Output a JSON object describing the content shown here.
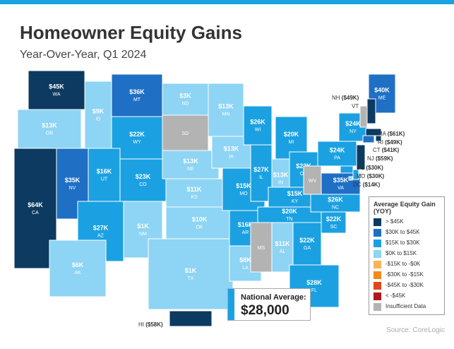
{
  "header": {
    "title": "Homeowner Equity Gains",
    "subtitle": "Year-Over-Year, Q1 2024"
  },
  "states": [
    {
      "abbr": "WA",
      "value": "$45K",
      "color": "#0c3a60"
    },
    {
      "abbr": "OR",
      "value": "$13K",
      "color": "#8ed4f4"
    },
    {
      "abbr": "CA",
      "value": "$64K",
      "color": "#0c3a60"
    },
    {
      "abbr": "NV",
      "value": "$35K",
      "color": "#1f6fc5"
    },
    {
      "abbr": "ID",
      "value": "$9K",
      "color": "#8ed4f4"
    },
    {
      "abbr": "MT",
      "value": "$36K",
      "color": "#1f6fc5"
    },
    {
      "abbr": "WY",
      "value": "$22K",
      "color": "#1ba1e2"
    },
    {
      "abbr": "UT",
      "value": "$16K",
      "color": "#1ba1e2"
    },
    {
      "abbr": "CO",
      "value": "$23K",
      "color": "#1ba1e2"
    },
    {
      "abbr": "AZ",
      "value": "$27K",
      "color": "#1ba1e2"
    },
    {
      "abbr": "NM",
      "value": "$1K",
      "color": "#8ed4f4"
    },
    {
      "abbr": "ND",
      "value": "$3K",
      "color": "#8ed4f4"
    },
    {
      "abbr": "SD",
      "color": "#b3b3b3"
    },
    {
      "abbr": "NE",
      "value": "$13K",
      "color": "#8ed4f4"
    },
    {
      "abbr": "KS",
      "value": "$11K",
      "color": "#8ed4f4"
    },
    {
      "abbr": "OK",
      "value": "$10K",
      "color": "#8ed4f4"
    },
    {
      "abbr": "TX",
      "value": "$1K",
      "color": "#8ed4f4"
    },
    {
      "abbr": "MN",
      "value": "$13K",
      "color": "#8ed4f4"
    },
    {
      "abbr": "IA",
      "value": "$13K",
      "color": "#8ed4f4"
    },
    {
      "abbr": "MO",
      "value": "$15K",
      "color": "#1ba1e2"
    },
    {
      "abbr": "AR",
      "value": "$16K",
      "color": "#1ba1e2"
    },
    {
      "abbr": "LA",
      "value": "$8K",
      "color": "#8ed4f4"
    },
    {
      "abbr": "WI",
      "value": "$26K",
      "color": "#1ba1e2"
    },
    {
      "abbr": "IL",
      "value": "$27K",
      "color": "#1ba1e2"
    },
    {
      "abbr": "MI",
      "value": "$20K",
      "color": "#1ba1e2"
    },
    {
      "abbr": "IN",
      "value": "$13K",
      "color": "#8ed4f4"
    },
    {
      "abbr": "OH",
      "value": "$22K",
      "color": "#1ba1e2"
    },
    {
      "abbr": "KY",
      "value": "$15K",
      "color": "#1ba1e2"
    },
    {
      "abbr": "TN",
      "value": "$20K",
      "color": "#1ba1e2"
    },
    {
      "abbr": "MS",
      "color": "#b3b3b3"
    },
    {
      "abbr": "AL",
      "value": "$11K",
      "color": "#8ed4f4"
    },
    {
      "abbr": "GA",
      "value": "$22K",
      "color": "#1ba1e2"
    },
    {
      "abbr": "FL",
      "value": "$28K",
      "color": "#1ba1e2"
    },
    {
      "abbr": "SC",
      "value": "$22K",
      "color": "#1ba1e2"
    },
    {
      "abbr": "NC",
      "value": "$26K",
      "color": "#1ba1e2"
    },
    {
      "abbr": "VA",
      "value": "$35K",
      "color": "#1f6fc5"
    },
    {
      "abbr": "WV",
      "color": "#b3b3b3"
    },
    {
      "abbr": "PA",
      "value": "$24K",
      "color": "#1ba1e2"
    },
    {
      "abbr": "NY",
      "value": "$24K",
      "color": "#1ba1e2"
    },
    {
      "abbr": "ME",
      "value": "$40K",
      "color": "#1f6fc5"
    },
    {
      "abbr": "AK",
      "value": "$6K",
      "color": "#8ed4f4"
    },
    {
      "abbr": "VT",
      "color": "#b3b3b3"
    },
    {
      "abbr": "NH",
      "value": "($49K)",
      "color": "#0c3a60"
    },
    {
      "abbr": "MA",
      "value": "($61K)",
      "color": "#0c3a60"
    },
    {
      "abbr": "RI",
      "value": "($49K)",
      "color": "#0c3a60"
    },
    {
      "abbr": "CT",
      "value": "($41K)",
      "color": "#1f6fc5"
    },
    {
      "abbr": "NJ",
      "value": "($59K)",
      "color": "#0c3a60"
    },
    {
      "abbr": "DE",
      "value": "($30K)",
      "color": "#1ba1e2"
    },
    {
      "abbr": "MD",
      "value": "($30K)",
      "color": "#1ba1e2"
    },
    {
      "abbr": "DC",
      "value": "($14K)",
      "color": "#8ed4f4"
    },
    {
      "abbr": "HI",
      "value": "($58K)",
      "color": "#0c3a60"
    }
  ],
  "legend": {
    "title": "Average Equity Gain (YOY)",
    "items": [
      {
        "label": "> $45K",
        "color": "#0c3a60"
      },
      {
        "label": "$30K to $45K",
        "color": "#1f6fc5"
      },
      {
        "label": "$15K to $30K",
        "color": "#1ba1e2"
      },
      {
        "label": "$0K to $15K",
        "color": "#8ed4f4"
      },
      {
        "label": "-$15K to -$0K",
        "color": "#f9b45a"
      },
      {
        "label": "-$30K to -$15K",
        "color": "#f08a1c"
      },
      {
        "label": "-$45K to -$30K",
        "color": "#e0461b"
      },
      {
        "label": "< -$45K",
        "color": "#b0181b"
      },
      {
        "label": "Insufficient Data",
        "color": "#b3b3b3"
      }
    ]
  },
  "national_average": {
    "label": "National Average:",
    "value": "$28,000"
  },
  "source": "Source: CoreLogic"
}
